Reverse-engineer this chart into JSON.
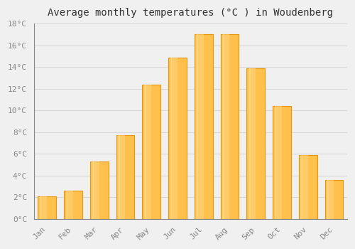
{
  "months": [
    "Jan",
    "Feb",
    "Mar",
    "Apr",
    "May",
    "Jun",
    "Jul",
    "Aug",
    "Sep",
    "Oct",
    "Nov",
    "Dec"
  ],
  "values": [
    2.1,
    2.6,
    5.3,
    7.7,
    12.4,
    14.9,
    17.0,
    17.0,
    13.9,
    10.4,
    5.9,
    3.6
  ],
  "bar_color_main": "#FFC04C",
  "bar_color_edge": "#E8960A",
  "bar_color_light": "#FFD580",
  "title": "Average monthly temperatures (°C ) in Woudenberg",
  "ylim": [
    0,
    18
  ],
  "ytick_values": [
    0,
    2,
    4,
    6,
    8,
    10,
    12,
    14,
    16,
    18
  ],
  "ytick_labels": [
    "0°C",
    "2°C",
    "4°C",
    "6°C",
    "8°C",
    "10°C",
    "12°C",
    "14°C",
    "16°C",
    "18°C"
  ],
  "background_color": "#f0f0f0",
  "plot_bg_color": "#f0f0f0",
  "grid_color": "#d8d8d8",
  "title_fontsize": 10,
  "tick_fontsize": 8,
  "font_family": "monospace",
  "bar_width": 0.7,
  "spine_color": "#888888",
  "tick_color": "#888888"
}
